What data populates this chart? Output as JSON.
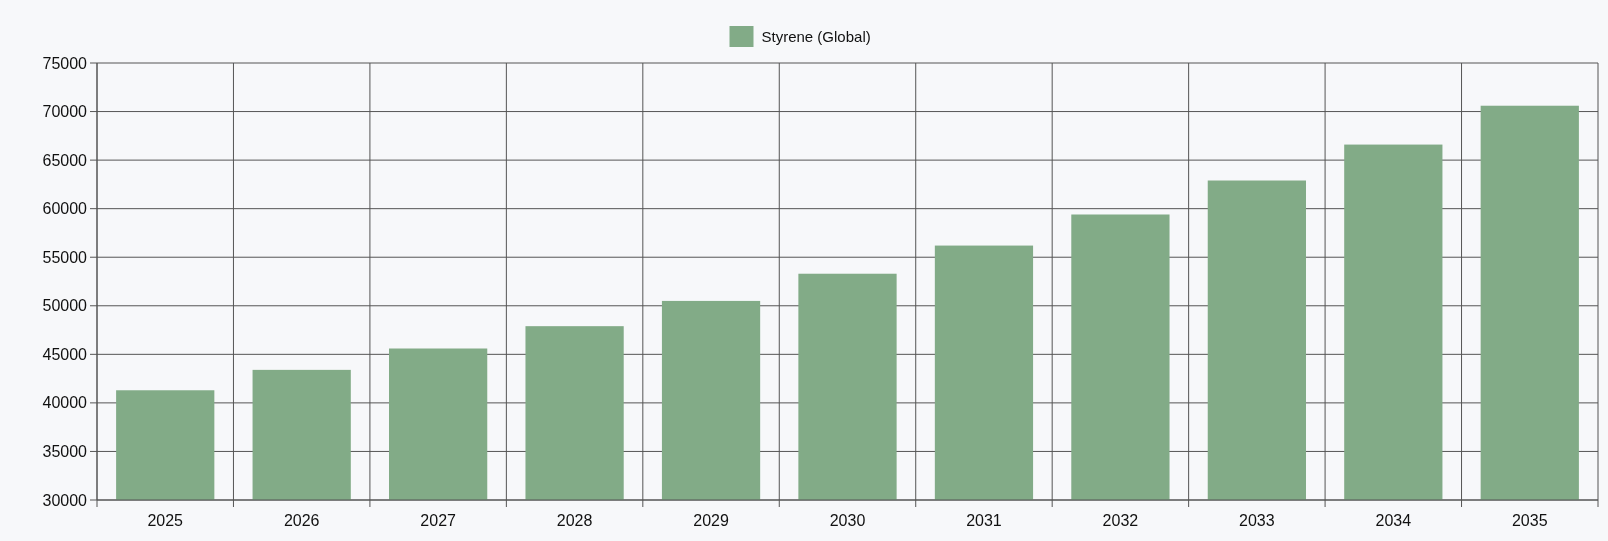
{
  "chart_data": {
    "type": "bar",
    "categories": [
      "2025",
      "2026",
      "2027",
      "2028",
      "2029",
      "2030",
      "2031",
      "2032",
      "2033",
      "2034",
      "2035"
    ],
    "series": [
      {
        "name": "Styrene (Global)",
        "color": "#82ab87",
        "values": [
          41300,
          43400,
          45600,
          47900,
          50500,
          53300,
          56200,
          59400,
          62900,
          66600,
          70600
        ]
      }
    ],
    "ylim": [
      30000,
      75000
    ],
    "yticks": [
      30000,
      35000,
      40000,
      45000,
      50000,
      55000,
      60000,
      65000,
      70000,
      75000
    ],
    "grid": true,
    "legend": "top"
  }
}
